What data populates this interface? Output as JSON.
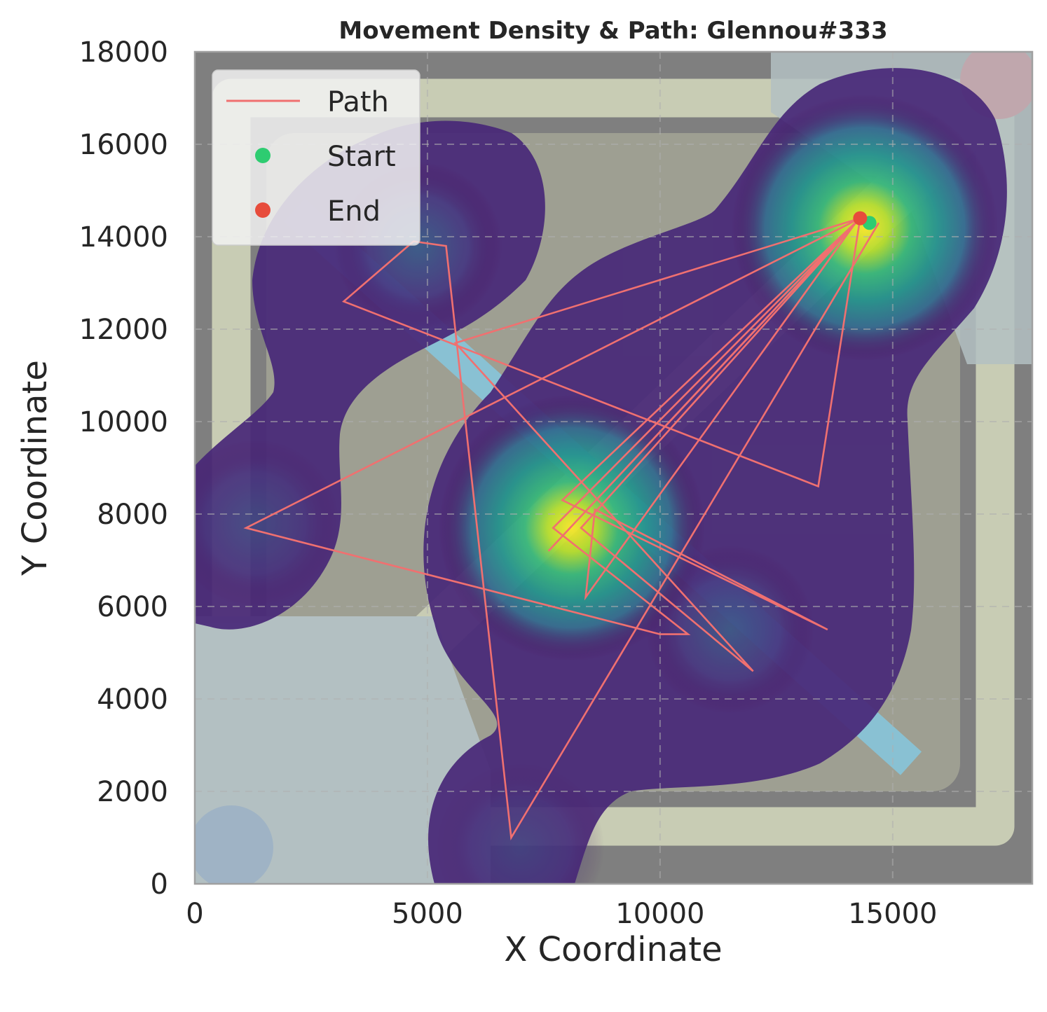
{
  "chart_data": {
    "type": "scatter",
    "title": "Movement Density & Path: Glennou#333",
    "xlabel": "X Coordinate",
    "ylabel": "Y Coordinate",
    "xlim": [
      0,
      18000
    ],
    "ylim": [
      0,
      18000
    ],
    "xticks": [
      0,
      5000,
      10000,
      15000
    ],
    "yticks": [
      0,
      2000,
      4000,
      6000,
      8000,
      10000,
      12000,
      14000,
      16000,
      18000
    ],
    "xtick_labels": [
      "0",
      "5000",
      "10000",
      "15000"
    ],
    "ytick_labels": [
      "0",
      "2000",
      "4000",
      "6000",
      "8000",
      "10000",
      "12000",
      "14000",
      "16000",
      "18000"
    ],
    "grid": true,
    "legend": {
      "position": "top-left",
      "entries": [
        {
          "label": "Path",
          "kind": "line",
          "color": "#f07070"
        },
        {
          "label": "Start",
          "kind": "marker",
          "color": "#2ecc71"
        },
        {
          "label": "End",
          "kind": "marker",
          "color": "#e74c3c"
        }
      ]
    },
    "colors": {
      "path": "#f07070",
      "start": "#2ecc71",
      "end": "#e74c3c",
      "density_colormap": "viridis",
      "map_background": "#7f7f7f"
    },
    "density_peaks": [
      {
        "x": 8100,
        "y": 7700,
        "level": 1.0
      },
      {
        "x": 14400,
        "y": 14200,
        "level": 1.0
      },
      {
        "x": 4800,
        "y": 13800,
        "level": 0.35
      },
      {
        "x": 1300,
        "y": 7800,
        "level": 0.2
      },
      {
        "x": 11500,
        "y": 5500,
        "level": 0.3
      },
      {
        "x": 7000,
        "y": 800,
        "level": 0.15
      }
    ],
    "path": [
      {
        "x": 14700,
        "y": 14300
      },
      {
        "x": 6800,
        "y": 1000
      },
      {
        "x": 5400,
        "y": 13800
      },
      {
        "x": 4700,
        "y": 13900
      },
      {
        "x": 3200,
        "y": 12600
      },
      {
        "x": 13400,
        "y": 8600
      },
      {
        "x": 14300,
        "y": 14400
      },
      {
        "x": 7600,
        "y": 7200
      },
      {
        "x": 14200,
        "y": 14300
      },
      {
        "x": 8400,
        "y": 6200
      },
      {
        "x": 8600,
        "y": 8100
      },
      {
        "x": 13600,
        "y": 5500
      },
      {
        "x": 7900,
        "y": 8300
      },
      {
        "x": 14300,
        "y": 14400
      },
      {
        "x": 1100,
        "y": 7700
      },
      {
        "x": 10000,
        "y": 5400
      },
      {
        "x": 10600,
        "y": 5400
      },
      {
        "x": 7700,
        "y": 7700
      },
      {
        "x": 14300,
        "y": 14400
      },
      {
        "x": 8300,
        "y": 7700
      },
      {
        "x": 12000,
        "y": 4600
      },
      {
        "x": 5600,
        "y": 11700
      },
      {
        "x": 14300,
        "y": 14400
      }
    ],
    "start": {
      "x": 14500,
      "y": 14300
    },
    "end": {
      "x": 14300,
      "y": 14400
    }
  }
}
